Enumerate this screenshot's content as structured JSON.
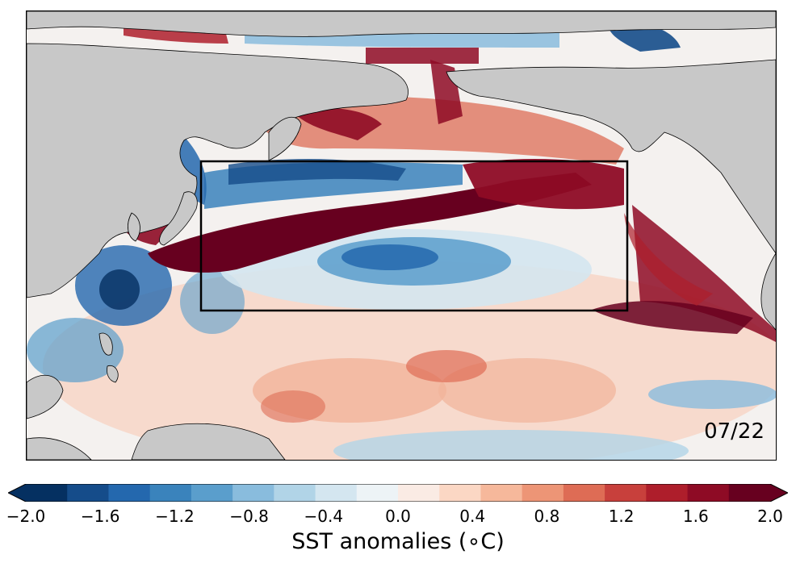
{
  "map": {
    "date": "07/22",
    "colors": {
      "land": "#c8c8c8",
      "coastline": "#000000",
      "box": "#000000"
    },
    "region_box": {
      "lon_min": 130,
      "lon_max": 240,
      "lat_min": 20,
      "lat_max": 50
    }
  },
  "colorbar": {
    "title": "SST anomalies (∘C)",
    "vmin": -2.0,
    "vmax": 2.0,
    "extend": "both",
    "tick_labels": [
      "−2.0",
      "−1.6",
      "−1.2",
      "−0.8",
      "−0.4",
      "0.0",
      "0.4",
      "0.8",
      "1.2",
      "1.6",
      "2.0"
    ],
    "colors": [
      "#053061",
      "#154c8a",
      "#2468ae",
      "#3a83bc",
      "#5a9ecc",
      "#89bcdd",
      "#b1d4e7",
      "#d4e6f0",
      "#edf3f6",
      "#faebe4",
      "#fbd7c4",
      "#f6b89b",
      "#ed9576",
      "#de6c55",
      "#c8403c",
      "#ae1e2b",
      "#8e0b25",
      "#67001f"
    ]
  }
}
